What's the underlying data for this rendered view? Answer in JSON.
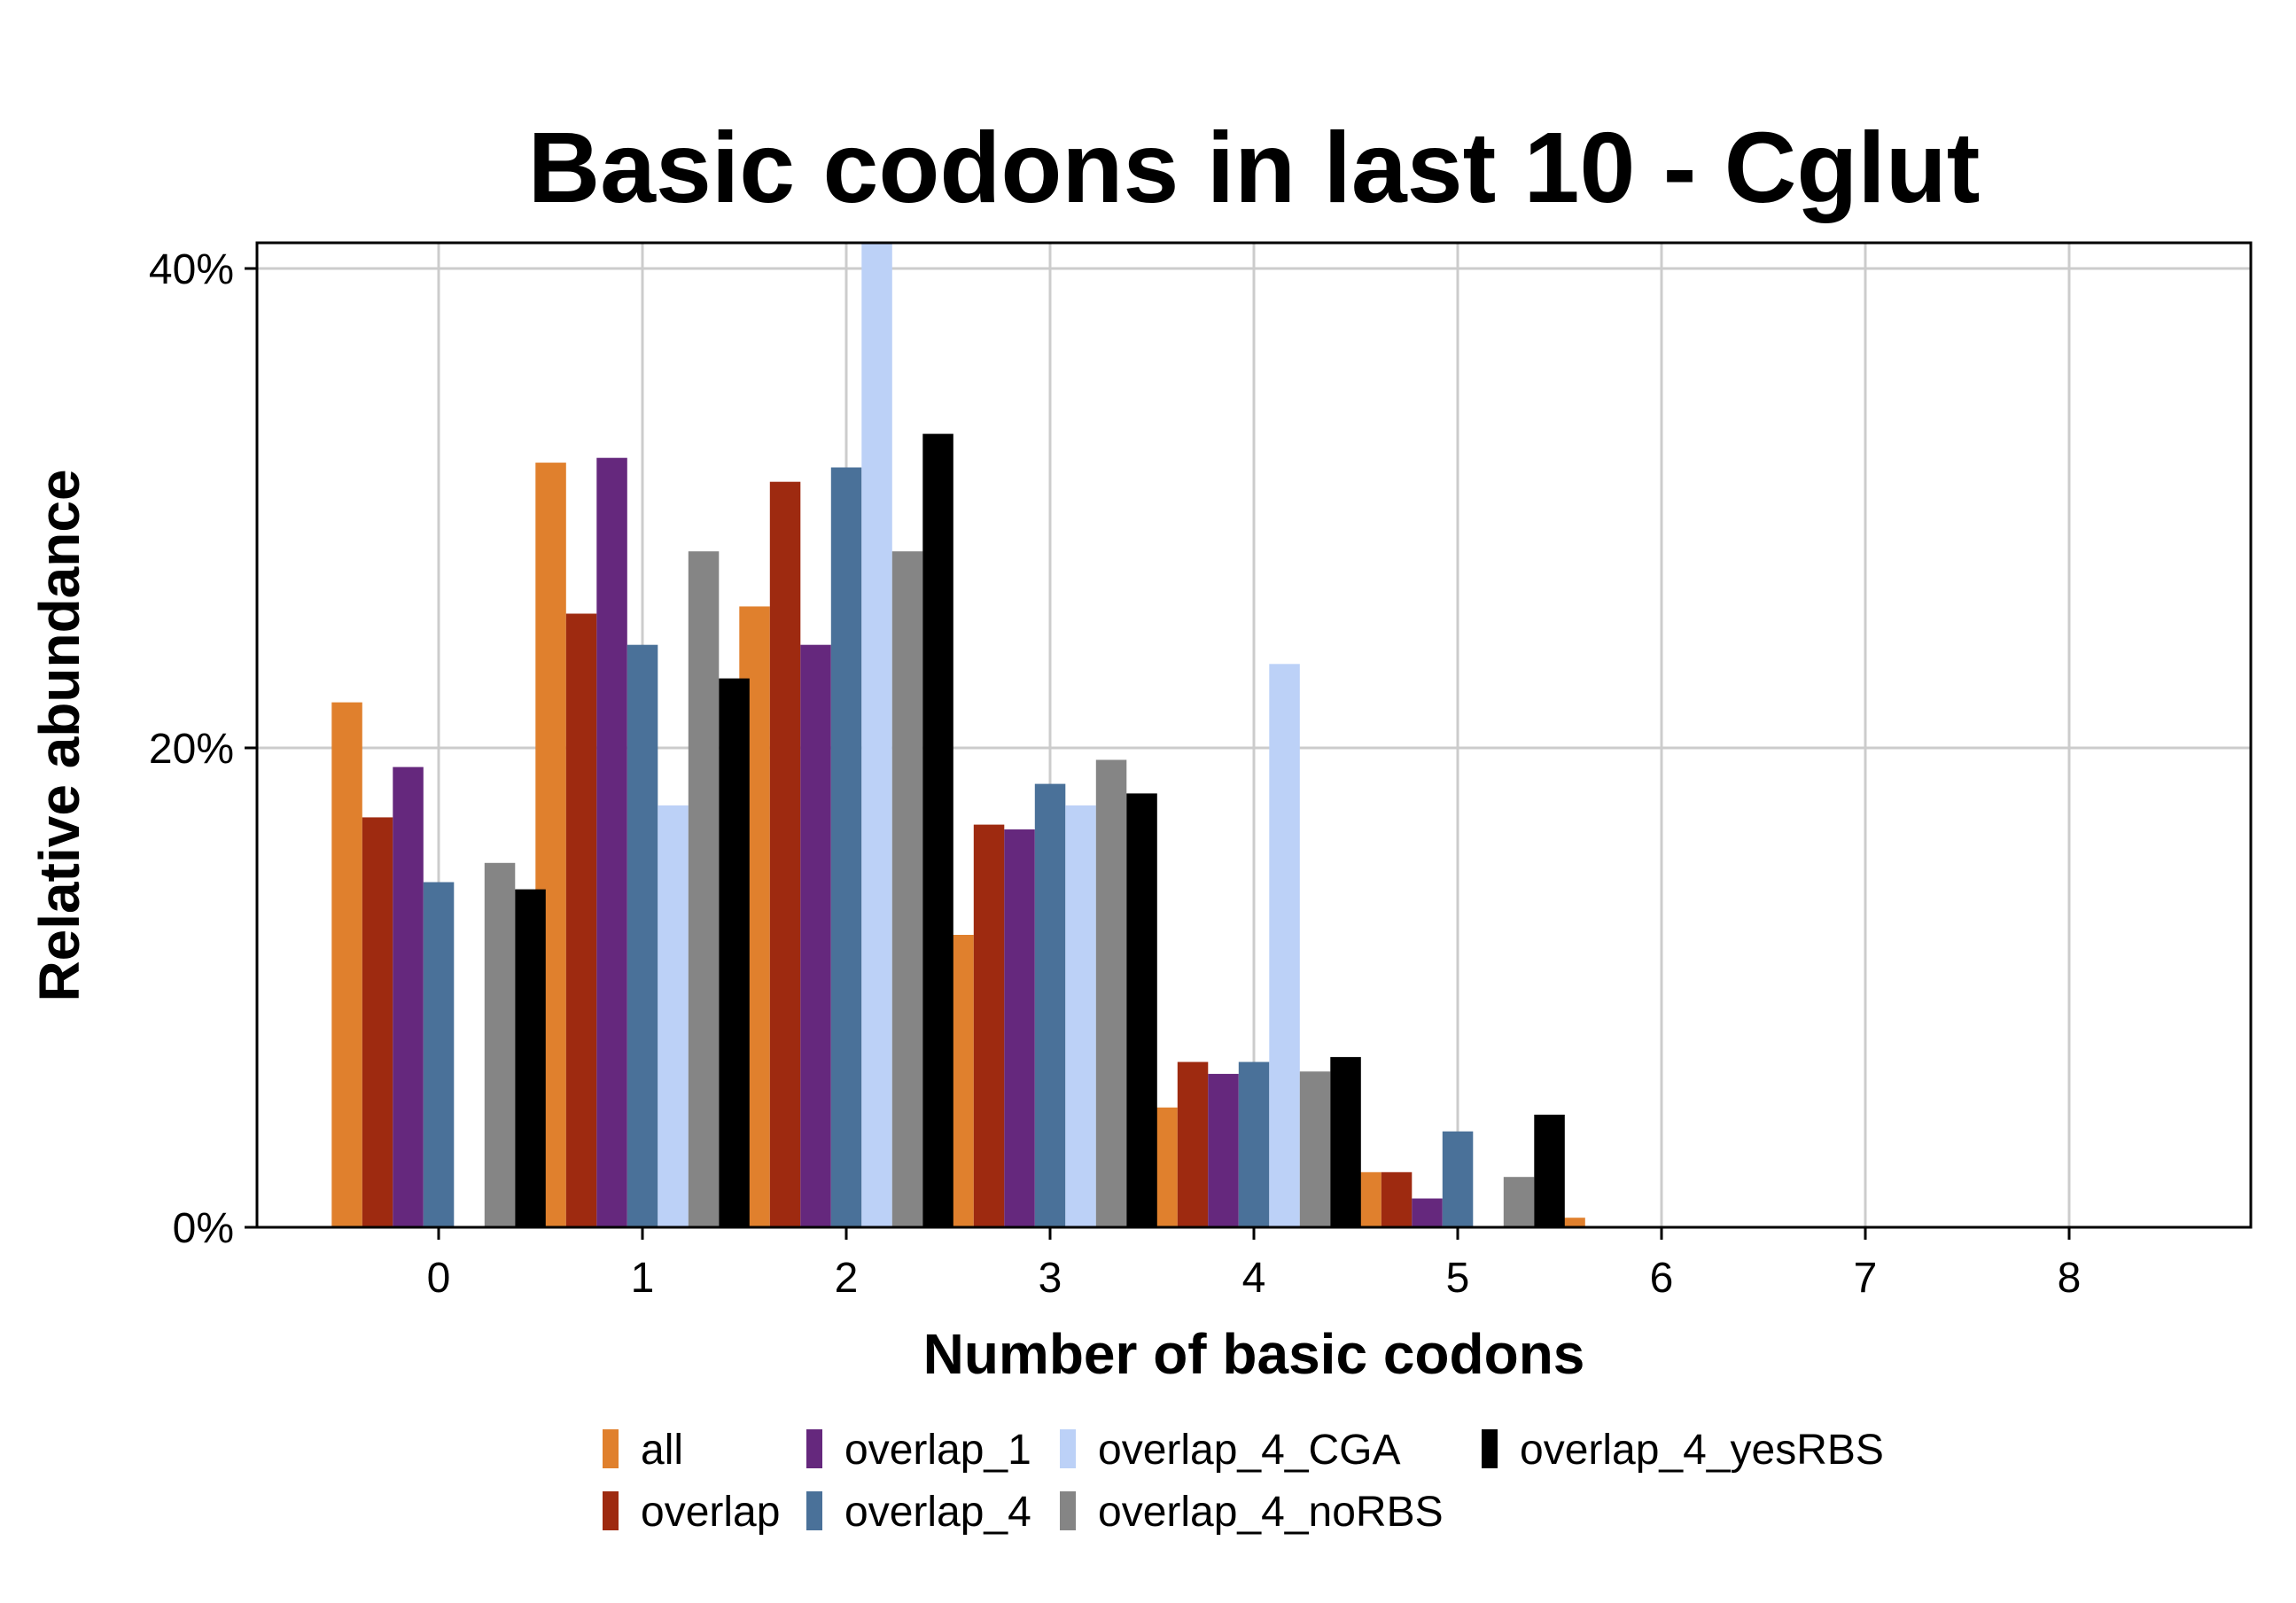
{
  "chart_data": {
    "type": "bar",
    "title": "Basic codons in last 10 - Cglut",
    "xlabel": "Number of basic codons",
    "ylabel": "Relative abundance",
    "categories": [
      "0",
      "1",
      "2",
      "3",
      "4",
      "5",
      "6",
      "7",
      "8"
    ],
    "y_ticks": [
      "0%",
      "20%",
      "40%"
    ],
    "y_tick_values": [
      0,
      20,
      40
    ],
    "ylim": [
      0,
      41.2
    ],
    "grid": true,
    "legend_position": "bottom",
    "series": [
      {
        "name": "all",
        "color": "#e0802d",
        "values": [
          21.9,
          31.9,
          25.9,
          12.2,
          5.0,
          2.3,
          0.4,
          0.05,
          0.01
        ]
      },
      {
        "name": "overlap",
        "color": "#9e2a10",
        "values": [
          17.1,
          25.6,
          31.1,
          16.8,
          6.9,
          2.3,
          0,
          0,
          0
        ]
      },
      {
        "name": "overlap_1",
        "color": "#65287d",
        "values": [
          19.2,
          32.1,
          24.3,
          16.6,
          6.4,
          1.2,
          0,
          0,
          0
        ]
      },
      {
        "name": "overlap_4",
        "color": "#4a7199",
        "values": [
          14.4,
          24.3,
          31.7,
          18.5,
          6.9,
          4.0,
          0,
          0,
          0
        ]
      },
      {
        "name": "overlap_4_CGA",
        "color": "#bcd1f7",
        "values": [
          0,
          17.6,
          41.2,
          17.6,
          23.5,
          0,
          0,
          0,
          0
        ]
      },
      {
        "name": "overlap_4_noRBS",
        "color": "#858585",
        "values": [
          15.2,
          28.2,
          28.2,
          19.5,
          6.5,
          2.1,
          0,
          0,
          0
        ]
      },
      {
        "name": "overlap_4_yesRBS",
        "color": "#000000",
        "values": [
          14.1,
          22.9,
          33.1,
          18.1,
          7.1,
          4.7,
          0,
          0,
          0
        ]
      }
    ]
  }
}
